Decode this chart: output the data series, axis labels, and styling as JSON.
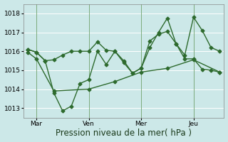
{
  "xlabel": "Pression niveau de la mer( hPa )",
  "background_color": "#cce8e8",
  "grid_color": "#ffffff",
  "line_color": "#2d6a2d",
  "vline_color": "#7aaa7a",
  "ylim": [
    1012.5,
    1018.5
  ],
  "yticks": [
    1013,
    1014,
    1015,
    1016,
    1017,
    1018
  ],
  "xlim": [
    -0.5,
    22.5
  ],
  "xtick_positions": [
    1,
    7,
    13,
    19
  ],
  "xtick_labels": [
    "Mar",
    "Ven",
    "Mer",
    "Jeu"
  ],
  "vlines": [
    1,
    7,
    13,
    19
  ],
  "line1_x": [
    0,
    1,
    2,
    3,
    4,
    5,
    6,
    7,
    8,
    9,
    10,
    11,
    12,
    13,
    14,
    15,
    16,
    17,
    18,
    19,
    20,
    21,
    22
  ],
  "line1_y": [
    1016.1,
    1015.95,
    1015.5,
    1013.8,
    1012.85,
    1013.1,
    1014.3,
    1014.5,
    1016.0,
    1015.3,
    1016.0,
    1015.5,
    1014.85,
    1015.1,
    1016.55,
    1016.9,
    1017.05,
    1016.4,
    1015.6,
    1015.6,
    1015.05,
    1015.0,
    1014.9
  ],
  "line2_x": [
    0,
    1,
    2,
    3,
    4,
    5,
    6,
    7,
    8,
    9,
    10,
    11,
    12,
    13,
    14,
    15,
    16,
    17,
    18,
    19,
    20,
    21,
    22
  ],
  "line2_y": [
    1016.1,
    1015.95,
    1015.5,
    1015.55,
    1015.8,
    1016.0,
    1016.0,
    1016.0,
    1016.5,
    1016.05,
    1016.0,
    1015.4,
    1014.85,
    1015.1,
    1016.2,
    1017.0,
    1017.75,
    1016.4,
    1015.8,
    1017.8,
    1017.1,
    1016.2,
    1016.0
  ],
  "line3_x": [
    0,
    1,
    3,
    7,
    10,
    13,
    16,
    19,
    22
  ],
  "line3_y": [
    1015.95,
    1015.6,
    1013.9,
    1014.0,
    1014.4,
    1014.9,
    1015.1,
    1015.55,
    1014.9
  ],
  "marker_size": 2.5,
  "line_width": 1.0,
  "tick_fontsize": 6.5,
  "xlabel_fontsize": 8.5
}
